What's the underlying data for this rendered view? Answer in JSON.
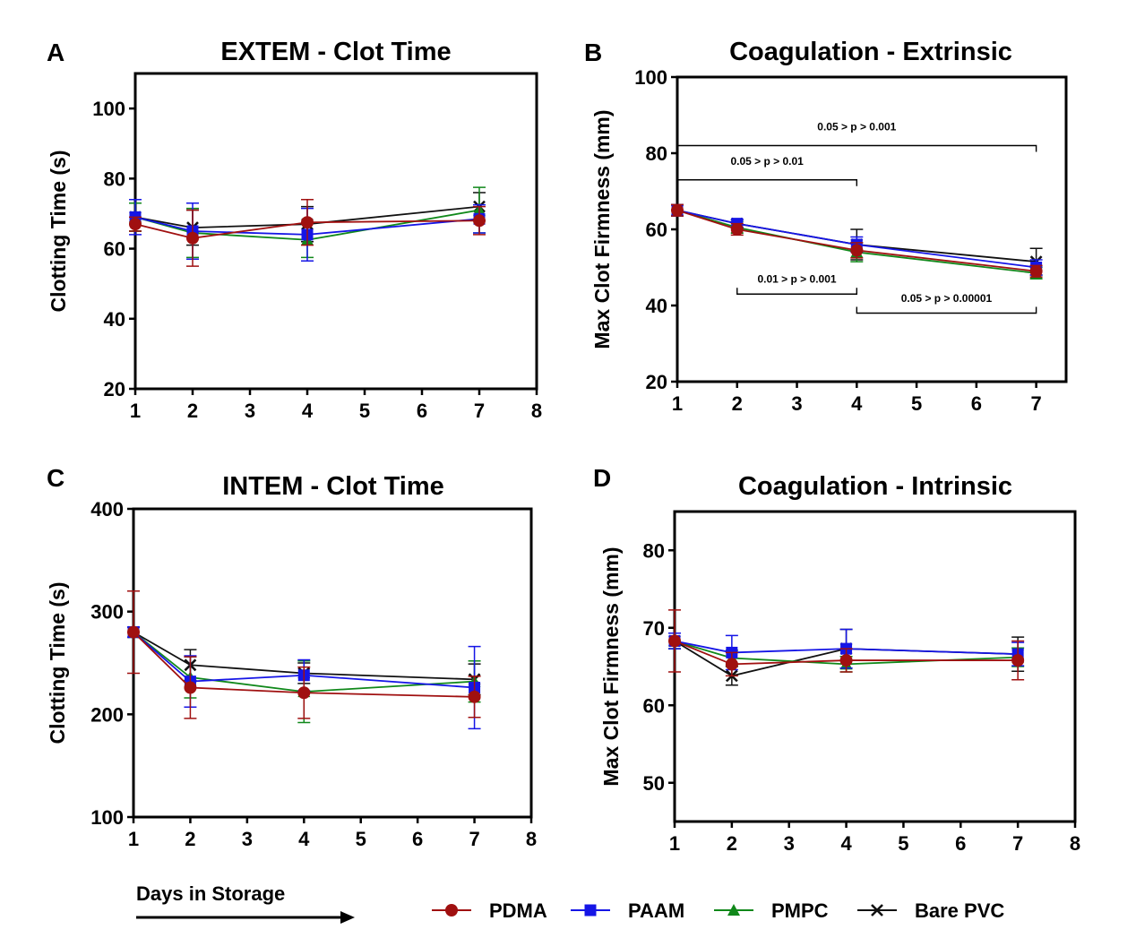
{
  "figure": {
    "xlabel": "Days in Storage",
    "colors": {
      "PDMA": "#a01010",
      "PAAM": "#1515e6",
      "PMPC": "#10881a",
      "Bare PVC": "#111111"
    },
    "legend": [
      {
        "name": "PDMA",
        "marker": "circle"
      },
      {
        "name": "PAAM",
        "marker": "square"
      },
      {
        "name": "PMPC",
        "marker": "triangle"
      },
      {
        "name": "Bare PVC",
        "marker": "cross"
      }
    ]
  },
  "chart_data": [
    {
      "panel": "A",
      "type": "line",
      "title": "EXTEM - Clot Time",
      "ylabel": "Clotting Time (s)",
      "xlim": [
        1,
        8
      ],
      "ylim": [
        20,
        110
      ],
      "xticks": [
        1,
        2,
        3,
        4,
        5,
        6,
        7,
        8
      ],
      "yticks": [
        20,
        40,
        60,
        80,
        100
      ],
      "x": [
        1,
        2,
        4,
        7
      ],
      "series": [
        {
          "name": "PDMA",
          "values": [
            67,
            63,
            67.5,
            68
          ],
          "errors": [
            2,
            8,
            6.5,
            4
          ]
        },
        {
          "name": "PAAM",
          "values": [
            69,
            65,
            64,
            68.5
          ],
          "errors": [
            5,
            8,
            7.5,
            4
          ]
        },
        {
          "name": "PMPC",
          "values": [
            69,
            64.5,
            62.5,
            71
          ],
          "errors": [
            4,
            7,
            5,
            6.5
          ]
        },
        {
          "name": "Bare PVC",
          "values": [
            69,
            66,
            67,
            72
          ],
          "errors": [
            4,
            5,
            5,
            4
          ]
        }
      ],
      "annotations": []
    },
    {
      "panel": "B",
      "type": "line",
      "title": "Coagulation - Extrinsic",
      "ylabel": "Max Clot Firmness (mm)",
      "xlim": [
        1,
        7.5
      ],
      "ylim": [
        20,
        100
      ],
      "xticks": [
        1,
        2,
        3,
        4,
        5,
        6,
        7
      ],
      "yticks": [
        20,
        40,
        60,
        80,
        100
      ],
      "x": [
        1,
        2,
        4,
        7
      ],
      "series": [
        {
          "name": "PDMA",
          "values": [
            65,
            60,
            54.5,
            49
          ],
          "errors": [
            1.5,
            1.5,
            2,
            1.5
          ]
        },
        {
          "name": "PAAM",
          "values": [
            65,
            61.5,
            56,
            50
          ],
          "errors": [
            1.5,
            1,
            2,
            2
          ]
        },
        {
          "name": "PMPC",
          "values": [
            65,
            60.5,
            54,
            48.5
          ],
          "errors": [
            1.5,
            1.5,
            2.5,
            1.5
          ]
        },
        {
          "name": "Bare PVC",
          "values": [
            65,
            61.5,
            56,
            51.5
          ],
          "errors": [
            1.5,
            1,
            4,
            3.5
          ]
        }
      ],
      "annotations": [
        {
          "text": "0.05 > p > 0.001",
          "x1": 1,
          "x2": 7,
          "y": 82,
          "label_y": 86,
          "tick": "down"
        },
        {
          "text": "0.05 > p > 0.01",
          "x1": 1,
          "x2": 4,
          "y": 73,
          "label_y": 77,
          "tick": "down"
        },
        {
          "text": "0.01 > p > 0.001",
          "x1": 2,
          "x2": 4,
          "y": 43,
          "label_y": 46,
          "tick": "up"
        },
        {
          "text": "0.05 > p > 0.00001",
          "x1": 4,
          "x2": 7,
          "y": 38,
          "label_y": 41,
          "tick": "up"
        }
      ]
    },
    {
      "panel": "C",
      "type": "line",
      "title": "INTEM - Clot Time",
      "ylabel": "Clotting Time (s)",
      "xlim": [
        1,
        8
      ],
      "ylim": [
        100,
        400
      ],
      "xticks": [
        1,
        2,
        3,
        4,
        5,
        6,
        7,
        8
      ],
      "yticks": [
        100,
        200,
        300,
        400
      ],
      "x": [
        1,
        2,
        4,
        7
      ],
      "series": [
        {
          "name": "PDMA",
          "values": [
            280,
            226,
            221,
            217
          ],
          "errors": [
            40,
            30,
            25,
            20
          ]
        },
        {
          "name": "PAAM",
          "values": [
            280,
            232,
            238,
            226
          ],
          "errors": [
            5,
            25,
            15,
            40
          ]
        },
        {
          "name": "PMPC",
          "values": [
            280,
            236,
            222,
            232
          ],
          "errors": [
            5,
            20,
            30,
            20
          ]
        },
        {
          "name": "Bare PVC",
          "values": [
            280,
            248,
            240,
            234
          ],
          "errors": [
            5,
            15,
            10,
            15
          ]
        }
      ],
      "annotations": []
    },
    {
      "panel": "D",
      "type": "line",
      "title": "Coagulation - Intrinsic",
      "ylabel": "Max Clot Firmness (mm)",
      "xlim": [
        1,
        8
      ],
      "ylim": [
        45,
        85
      ],
      "xticks": [
        1,
        2,
        3,
        4,
        5,
        6,
        7,
        8
      ],
      "yticks": [
        50,
        60,
        70,
        80
      ],
      "x": [
        1,
        2,
        4,
        7
      ],
      "series": [
        {
          "name": "PDMA",
          "values": [
            68.3,
            65.3,
            65.8,
            65.8
          ],
          "errors": [
            4,
            1.5,
            1.5,
            2.5
          ]
        },
        {
          "name": "PAAM",
          "values": [
            68.3,
            66.8,
            67.3,
            66.6
          ],
          "errors": [
            1,
            2.2,
            2.5,
            1.5
          ]
        },
        {
          "name": "PMPC",
          "values": [
            68.3,
            66.1,
            65.3,
            66.2
          ],
          "errors": [
            1,
            1,
            1,
            1.2
          ]
        },
        {
          "name": "Bare PVC",
          "values": [
            68.3,
            63.8,
            67.3,
            66.6
          ],
          "errors": [
            1,
            1.2,
            2.5,
            2.2
          ]
        }
      ],
      "annotations": []
    }
  ]
}
